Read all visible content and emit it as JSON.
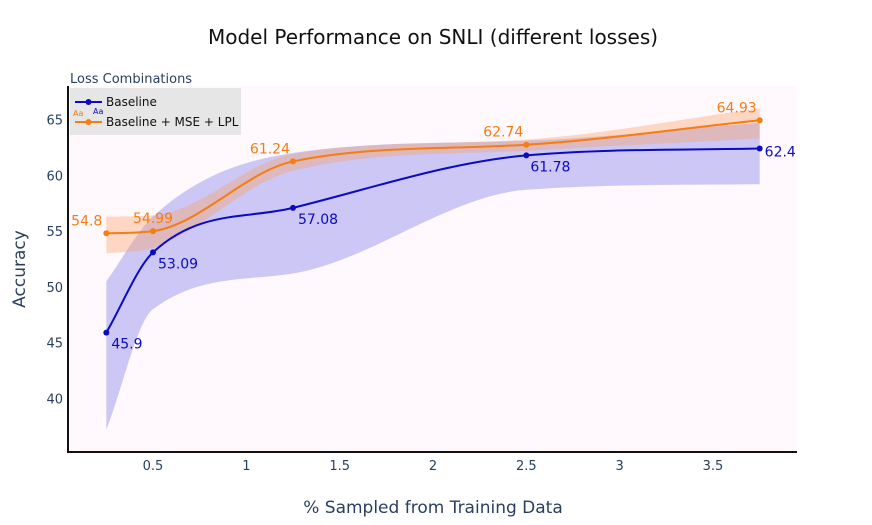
{
  "chart_data": {
    "type": "line",
    "title": "Model Performance on SNLI (different losses)",
    "xlabel": "% Sampled from Training Data",
    "ylabel": "Accuracy",
    "xlim": [
      0.05,
      3.95
    ],
    "ylim": [
      35.2,
      68.0
    ],
    "x_ticks": [
      0.5,
      1,
      1.5,
      2,
      2.5,
      3,
      3.5
    ],
    "x_tick_labels": [
      "0.5",
      "1",
      "1.5",
      "2",
      "2.5",
      "3",
      "3.5"
    ],
    "y_ticks": [
      40,
      45,
      50,
      55,
      60,
      65
    ],
    "y_tick_labels": [
      "40",
      "45",
      "50",
      "55",
      "60",
      "65"
    ],
    "legend_title": "Loss Combinations",
    "legend_position": "top-left",
    "legend_symbol_text": "Aa",
    "series": [
      {
        "name": "Baseline",
        "color": "#0b0bbf",
        "band_color": "rgba(110,110,225,0.35)",
        "x": [
          0.25,
          0.5,
          1.25,
          2.5,
          3.75
        ],
        "values": [
          45.9,
          53.09,
          57.08,
          61.78,
          62.4
        ],
        "labels": [
          "45.9",
          "53.09",
          "57.08",
          "61.78",
          "62.4"
        ],
        "upper": [
          50.5,
          56.3,
          62.0,
          63.1,
          64.7
        ],
        "lower": [
          37.2,
          48.0,
          51.2,
          58.7,
          59.2
        ]
      },
      {
        "name": "Baseline + MSE + LPL",
        "color": "#f57d12",
        "band_color": "rgba(250,160,100,0.38)",
        "x": [
          0.25,
          0.5,
          1.25,
          2.5,
          3.75
        ],
        "values": [
          54.8,
          54.99,
          61.24,
          62.74,
          64.93
        ],
        "labels": [
          "54.8",
          "54.99",
          "61.24",
          "62.74",
          "64.93"
        ],
        "upper": [
          56.3,
          56.4,
          61.9,
          63.2,
          66.0
        ],
        "lower": [
          53.0,
          53.5,
          60.4,
          62.2,
          63.3
        ]
      }
    ]
  }
}
